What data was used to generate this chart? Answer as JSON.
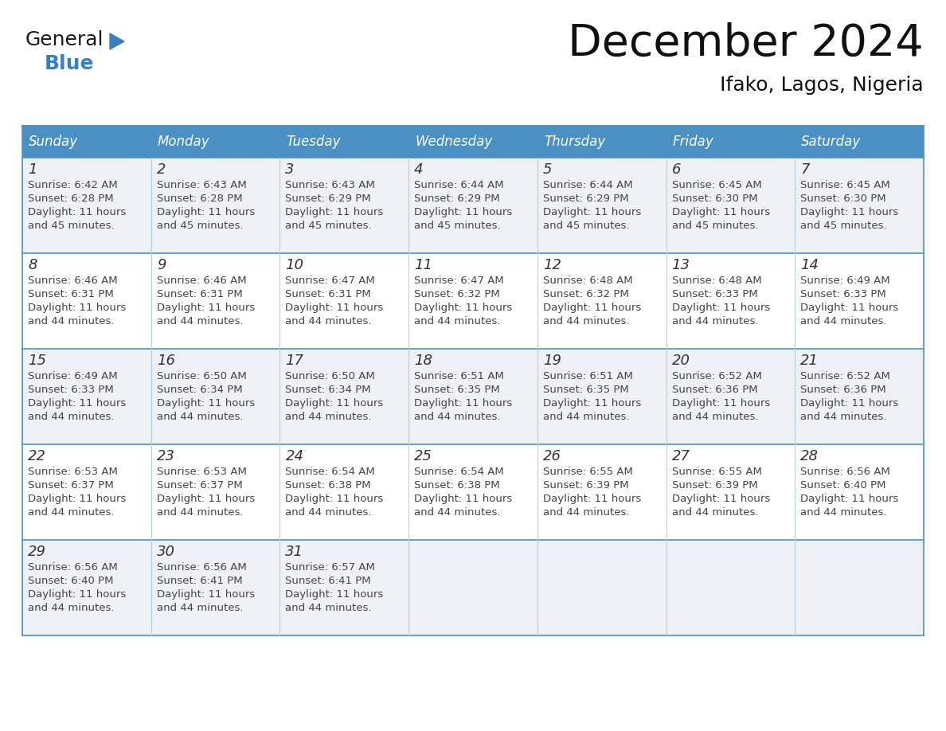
{
  "title": "December 2024",
  "subtitle": "Ifako, Lagos, Nigeria",
  "days_of_week": [
    "Sunday",
    "Monday",
    "Tuesday",
    "Wednesday",
    "Thursday",
    "Friday",
    "Saturday"
  ],
  "header_bg": "#4A90C4",
  "header_text_color": "#FFFFFF",
  "cell_bg_light": "#EEF2F7",
  "cell_bg_white": "#FFFFFF",
  "border_color": "#4A90C4",
  "day_num_color": "#333333",
  "text_color": "#444444",
  "title_color": "#111111",
  "subtitle_color": "#111111",
  "col_sep_color": "#BBCCDD",
  "calendar_data": [
    [
      {
        "day": 1,
        "sunrise": "6:42 AM",
        "sunset": "6:28 PM",
        "daylight_hours": 11,
        "daylight_minutes": 45
      },
      {
        "day": 2,
        "sunrise": "6:43 AM",
        "sunset": "6:28 PM",
        "daylight_hours": 11,
        "daylight_minutes": 45
      },
      {
        "day": 3,
        "sunrise": "6:43 AM",
        "sunset": "6:29 PM",
        "daylight_hours": 11,
        "daylight_minutes": 45
      },
      {
        "day": 4,
        "sunrise": "6:44 AM",
        "sunset": "6:29 PM",
        "daylight_hours": 11,
        "daylight_minutes": 45
      },
      {
        "day": 5,
        "sunrise": "6:44 AM",
        "sunset": "6:29 PM",
        "daylight_hours": 11,
        "daylight_minutes": 45
      },
      {
        "day": 6,
        "sunrise": "6:45 AM",
        "sunset": "6:30 PM",
        "daylight_hours": 11,
        "daylight_minutes": 45
      },
      {
        "day": 7,
        "sunrise": "6:45 AM",
        "sunset": "6:30 PM",
        "daylight_hours": 11,
        "daylight_minutes": 45
      }
    ],
    [
      {
        "day": 8,
        "sunrise": "6:46 AM",
        "sunset": "6:31 PM",
        "daylight_hours": 11,
        "daylight_minutes": 44
      },
      {
        "day": 9,
        "sunrise": "6:46 AM",
        "sunset": "6:31 PM",
        "daylight_hours": 11,
        "daylight_minutes": 44
      },
      {
        "day": 10,
        "sunrise": "6:47 AM",
        "sunset": "6:31 PM",
        "daylight_hours": 11,
        "daylight_minutes": 44
      },
      {
        "day": 11,
        "sunrise": "6:47 AM",
        "sunset": "6:32 PM",
        "daylight_hours": 11,
        "daylight_minutes": 44
      },
      {
        "day": 12,
        "sunrise": "6:48 AM",
        "sunset": "6:32 PM",
        "daylight_hours": 11,
        "daylight_minutes": 44
      },
      {
        "day": 13,
        "sunrise": "6:48 AM",
        "sunset": "6:33 PM",
        "daylight_hours": 11,
        "daylight_minutes": 44
      },
      {
        "day": 14,
        "sunrise": "6:49 AM",
        "sunset": "6:33 PM",
        "daylight_hours": 11,
        "daylight_minutes": 44
      }
    ],
    [
      {
        "day": 15,
        "sunrise": "6:49 AM",
        "sunset": "6:33 PM",
        "daylight_hours": 11,
        "daylight_minutes": 44
      },
      {
        "day": 16,
        "sunrise": "6:50 AM",
        "sunset": "6:34 PM",
        "daylight_hours": 11,
        "daylight_minutes": 44
      },
      {
        "day": 17,
        "sunrise": "6:50 AM",
        "sunset": "6:34 PM",
        "daylight_hours": 11,
        "daylight_minutes": 44
      },
      {
        "day": 18,
        "sunrise": "6:51 AM",
        "sunset": "6:35 PM",
        "daylight_hours": 11,
        "daylight_minutes": 44
      },
      {
        "day": 19,
        "sunrise": "6:51 AM",
        "sunset": "6:35 PM",
        "daylight_hours": 11,
        "daylight_minutes": 44
      },
      {
        "day": 20,
        "sunrise": "6:52 AM",
        "sunset": "6:36 PM",
        "daylight_hours": 11,
        "daylight_minutes": 44
      },
      {
        "day": 21,
        "sunrise": "6:52 AM",
        "sunset": "6:36 PM",
        "daylight_hours": 11,
        "daylight_minutes": 44
      }
    ],
    [
      {
        "day": 22,
        "sunrise": "6:53 AM",
        "sunset": "6:37 PM",
        "daylight_hours": 11,
        "daylight_minutes": 44
      },
      {
        "day": 23,
        "sunrise": "6:53 AM",
        "sunset": "6:37 PM",
        "daylight_hours": 11,
        "daylight_minutes": 44
      },
      {
        "day": 24,
        "sunrise": "6:54 AM",
        "sunset": "6:38 PM",
        "daylight_hours": 11,
        "daylight_minutes": 44
      },
      {
        "day": 25,
        "sunrise": "6:54 AM",
        "sunset": "6:38 PM",
        "daylight_hours": 11,
        "daylight_minutes": 44
      },
      {
        "day": 26,
        "sunrise": "6:55 AM",
        "sunset": "6:39 PM",
        "daylight_hours": 11,
        "daylight_minutes": 44
      },
      {
        "day": 27,
        "sunrise": "6:55 AM",
        "sunset": "6:39 PM",
        "daylight_hours": 11,
        "daylight_minutes": 44
      },
      {
        "day": 28,
        "sunrise": "6:56 AM",
        "sunset": "6:40 PM",
        "daylight_hours": 11,
        "daylight_minutes": 44
      }
    ],
    [
      {
        "day": 29,
        "sunrise": "6:56 AM",
        "sunset": "6:40 PM",
        "daylight_hours": 11,
        "daylight_minutes": 44
      },
      {
        "day": 30,
        "sunrise": "6:56 AM",
        "sunset": "6:41 PM",
        "daylight_hours": 11,
        "daylight_minutes": 44
      },
      {
        "day": 31,
        "sunrise": "6:57 AM",
        "sunset": "6:41 PM",
        "daylight_hours": 11,
        "daylight_minutes": 44
      },
      null,
      null,
      null,
      null
    ]
  ],
  "logo_text_general": "General",
  "logo_text_blue": "Blue",
  "logo_color_general": "#1a1a1a",
  "logo_color_blue": "#3A7FC1",
  "logo_triangle_color": "#3A7FC1"
}
